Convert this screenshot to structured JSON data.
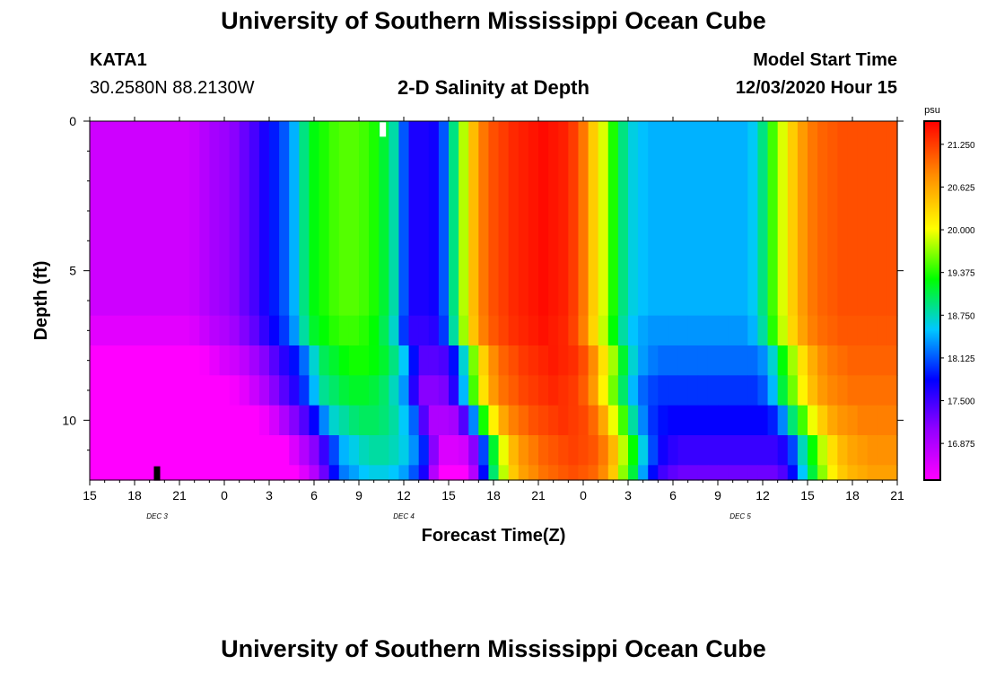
{
  "header": {
    "title": "University of Southern Mississippi Ocean Cube",
    "station": "KATA1",
    "coords": "30.2580N 88.2130W",
    "plot_title": "2-D Salinity at Depth",
    "start_label": "Model Start Time",
    "start_value": "12/03/2020 Hour 15"
  },
  "footer": {
    "title": "University of Southern Mississippi Ocean Cube"
  },
  "chart_data": {
    "type": "heatmap",
    "title": "2-D Salinity at Depth",
    "xlabel": "Forecast Time(Z)",
    "ylabel": "Depth (ft)",
    "x_ticks": [
      "15",
      "18",
      "21",
      "0",
      "3",
      "6",
      "9",
      "12",
      "15",
      "18",
      "21",
      "0",
      "3",
      "6",
      "9",
      "12",
      "15",
      "18",
      "21"
    ],
    "date_labels": [
      {
        "label": "DEC 3",
        "x_hour": 19.5
      },
      {
        "label": "DEC 4",
        "x_hour": 36
      },
      {
        "label": "DEC 5",
        "x_hour": 58.5
      }
    ],
    "x_range_hours": [
      15,
      69
    ],
    "y_ticks": [
      0,
      5,
      10
    ],
    "y_range_ft": [
      0,
      12
    ],
    "units": "psu",
    "colorbar_ticks": [
      "21.250",
      "20.625",
      "20.000",
      "19.375",
      "18.750",
      "18.125",
      "17.500",
      "16.875"
    ],
    "value_range": [
      16.6,
      21.3
    ],
    "depth_levels_ft": [
      0,
      6.5,
      7.5,
      8.5,
      9.5,
      10.5,
      11.5
    ],
    "surface_salinity_psu": [
      16.9,
      16.9,
      16.9,
      16.9,
      16.9,
      16.9,
      16.9,
      16.9,
      16.9,
      16.9,
      16.95,
      17.05,
      17.15,
      17.2,
      17.3,
      17.45,
      17.6,
      17.8,
      18.0,
      18.2,
      18.5,
      18.9,
      19.2,
      19.3,
      19.4,
      19.45,
      19.45,
      19.4,
      19.3,
      19.1,
      18.8,
      18.2,
      17.8,
      17.8,
      17.85,
      18.2,
      18.9,
      19.7,
      20.3,
      20.7,
      20.9,
      21.0,
      21.1,
      21.15,
      21.2,
      21.25,
      21.2,
      21.15,
      21.0,
      20.7,
      20.2,
      19.8,
      19.3,
      18.9,
      18.65,
      18.55,
      18.5,
      18.5,
      18.5,
      18.5,
      18.5,
      18.5,
      18.5,
      18.5,
      18.5,
      18.5,
      18.6,
      18.9,
      19.4,
      19.8,
      20.2,
      20.5,
      20.7,
      20.8,
      20.85,
      20.9,
      20.9,
      20.9,
      20.9,
      20.9,
      20.9
    ],
    "depth_offsets_psu": [
      0,
      -0.1,
      -0.25,
      -0.45,
      -0.65,
      -0.9,
      -1.15
    ],
    "markers": [
      {
        "color": "#ffffff",
        "x_hour": 34.6,
        "depth_ft": 0.25
      },
      {
        "color": "#000000",
        "x_hour": 19.5,
        "depth_ft": 11.75
      }
    ]
  }
}
